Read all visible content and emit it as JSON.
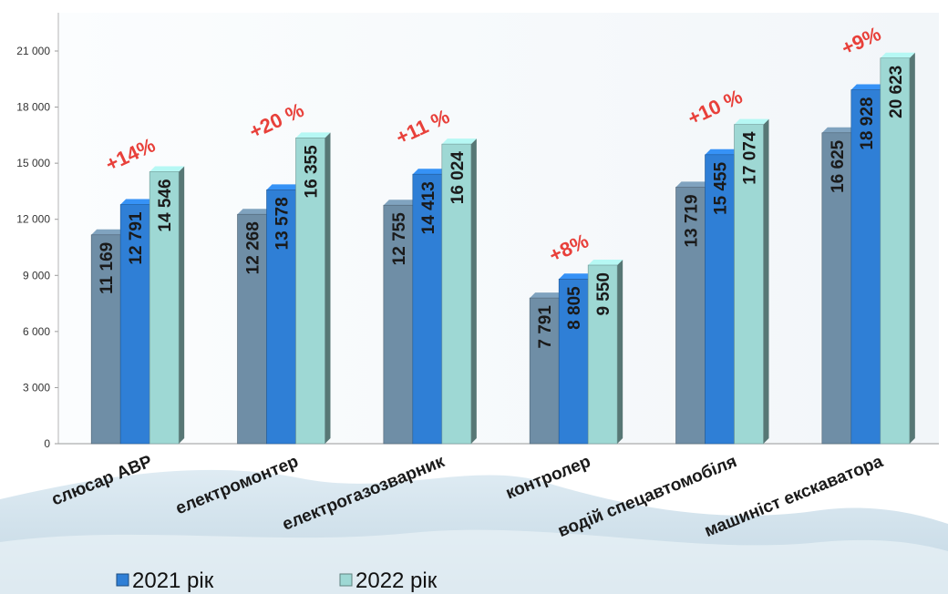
{
  "chart_data": {
    "type": "bar",
    "categories": [
      "слюсар АВР",
      "електромонтер",
      "електрогазозварник",
      "контролер",
      "водій спецавтомобіля",
      "машиніст екскаватора"
    ],
    "series": [
      {
        "name": "",
        "color": "#6f8ea6",
        "values": [
          11169,
          12268,
          12755,
          7791,
          13719,
          16625
        ],
        "labels": [
          "11 169",
          "12 268",
          "12 755",
          "7 791",
          "13 719",
          "16 625"
        ]
      },
      {
        "name": "2021 рік",
        "color": "#2f7fd6",
        "values": [
          12791,
          13578,
          14413,
          8805,
          15455,
          18928
        ],
        "labels": [
          "12 791",
          "13 578",
          "14 413",
          "8 805",
          "15 455",
          "18 928"
        ]
      },
      {
        "name": "2022 рік",
        "color": "#9ed8d4",
        "values": [
          14546,
          16355,
          16024,
          9550,
          17074,
          20623
        ],
        "labels": [
          "14 546",
          "16 355",
          "16 024",
          "9 550",
          "17 074",
          "20 623"
        ]
      }
    ],
    "annotations": [
      "+14%",
      "+20 %",
      "+11 %",
      "+8%",
      "+10 %",
      "+9%"
    ],
    "annotation_color": "#e8403a",
    "y_ticks": [
      0,
      3000,
      6000,
      9000,
      12000,
      15000,
      18000,
      21000
    ],
    "y_tick_labels": [
      "0",
      "3 000",
      "6 000",
      "9 000",
      "12 000",
      "15 000",
      "18 000",
      "21 000"
    ],
    "ylim": [
      0,
      21000
    ],
    "grid": false,
    "legend_position": "bottom-left",
    "title": "",
    "xlabel": "",
    "ylabel": ""
  }
}
